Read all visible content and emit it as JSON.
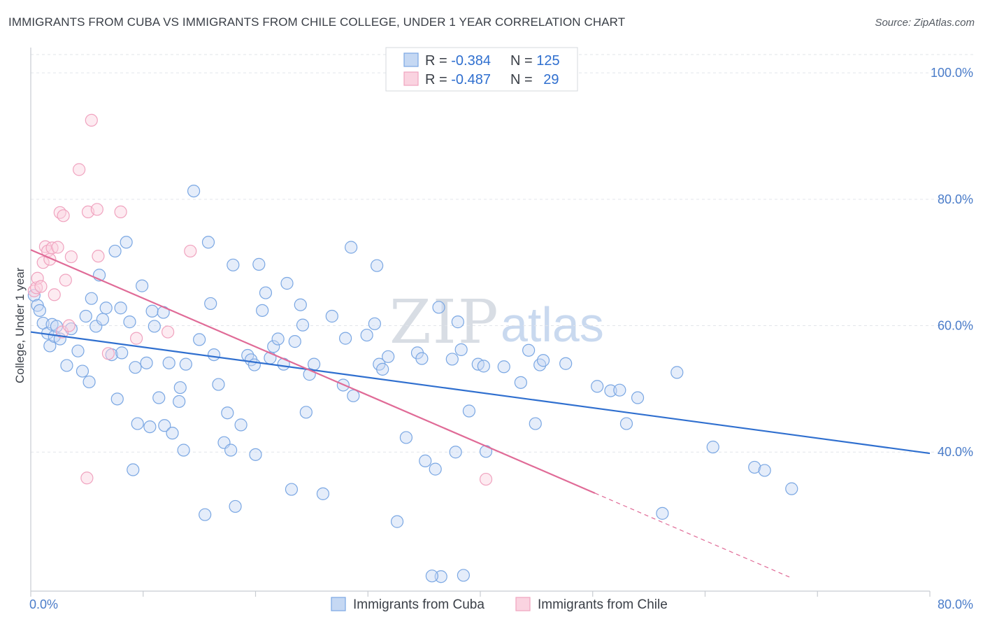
{
  "header": {
    "title": "IMMIGRANTS FROM CUBA VS IMMIGRANTS FROM CHILE COLLEGE, UNDER 1 YEAR CORRELATION CHART",
    "source": "Source: ZipAtlas.com"
  },
  "watermark": {
    "zip": "ZIP",
    "atlas": "atlas"
  },
  "legend": {
    "cuba": {
      "r_label": "R = ",
      "r_value": "-0.384",
      "n_label": "N = ",
      "n_value": "125"
    },
    "chile": {
      "r_label": "R = ",
      "r_value": "-0.487",
      "n_label": "N = ",
      "n_value": "29"
    }
  },
  "chart_data": {
    "type": "scatter",
    "title": "IMMIGRANTS FROM CUBA VS IMMIGRANTS FROM CHILE COLLEGE, UNDER 1 YEAR CORRELATION CHART",
    "xlabel": "",
    "ylabel": "College, Under 1 year",
    "xlim": [
      0,
      80
    ],
    "ylim": [
      18,
      104
    ],
    "x_tick_labels": [
      "0.0%",
      "80.0%"
    ],
    "y_ticks": [
      40,
      60,
      80,
      100
    ],
    "y_tick_labels": [
      "40.0%",
      "60.0%",
      "80.0%",
      "100.0%"
    ],
    "grid": true,
    "legend_position": "top-center",
    "colors": {
      "cuba": "#7aa7e3",
      "cuba_line": "#2f6fcf",
      "chile": "#f0a3bf",
      "chile_line": "#e06b97",
      "tick": "#4a7cc9"
    },
    "series": [
      {
        "name": "Immigrants from Cuba",
        "r": -0.384,
        "n": 125,
        "trend": {
          "x": [
            0,
            80
          ],
          "y": [
            59.0,
            39.8
          ]
        },
        "points": [
          [
            0.3,
            64.8
          ],
          [
            0.6,
            63.2
          ],
          [
            0.8,
            62.4
          ],
          [
            1.1,
            60.4
          ],
          [
            1.5,
            58.8
          ],
          [
            1.7,
            56.8
          ],
          [
            1.9,
            60.2
          ],
          [
            2.1,
            58.3
          ],
          [
            2.3,
            59.9
          ],
          [
            2.6,
            57.9
          ],
          [
            3.2,
            53.7
          ],
          [
            3.6,
            59.5
          ],
          [
            4.2,
            56.0
          ],
          [
            4.6,
            52.8
          ],
          [
            4.9,
            61.5
          ],
          [
            5.2,
            51.1
          ],
          [
            5.4,
            64.3
          ],
          [
            5.8,
            59.9
          ],
          [
            6.1,
            68.0
          ],
          [
            6.4,
            61.0
          ],
          [
            6.7,
            62.8
          ],
          [
            7.2,
            55.4
          ],
          [
            7.5,
            71.8
          ],
          [
            7.7,
            48.4
          ],
          [
            8.0,
            62.8
          ],
          [
            8.1,
            55.7
          ],
          [
            8.5,
            73.2
          ],
          [
            8.8,
            60.6
          ],
          [
            9.1,
            37.2
          ],
          [
            9.3,
            53.4
          ],
          [
            9.5,
            44.5
          ],
          [
            9.9,
            66.3
          ],
          [
            10.3,
            54.1
          ],
          [
            10.6,
            44.0
          ],
          [
            10.8,
            62.3
          ],
          [
            11.0,
            59.9
          ],
          [
            11.4,
            48.6
          ],
          [
            11.8,
            62.1
          ],
          [
            11.9,
            44.2
          ],
          [
            12.3,
            54.1
          ],
          [
            12.6,
            43.0
          ],
          [
            13.2,
            48.0
          ],
          [
            13.3,
            50.2
          ],
          [
            13.6,
            40.3
          ],
          [
            13.8,
            53.9
          ],
          [
            14.5,
            81.3
          ],
          [
            15.0,
            57.8
          ],
          [
            15.5,
            30.1
          ],
          [
            15.8,
            73.2
          ],
          [
            16.0,
            63.5
          ],
          [
            16.3,
            55.4
          ],
          [
            16.7,
            50.7
          ],
          [
            17.2,
            41.5
          ],
          [
            17.5,
            46.2
          ],
          [
            17.8,
            40.3
          ],
          [
            18.0,
            69.6
          ],
          [
            18.7,
            44.3
          ],
          [
            19.3,
            55.3
          ],
          [
            19.6,
            54.6
          ],
          [
            19.9,
            53.8
          ],
          [
            18.2,
            31.4
          ],
          [
            20.0,
            39.6
          ],
          [
            20.3,
            69.7
          ],
          [
            20.6,
            62.4
          ],
          [
            20.9,
            65.2
          ],
          [
            21.3,
            54.9
          ],
          [
            21.6,
            56.7
          ],
          [
            22.0,
            57.9
          ],
          [
            22.5,
            53.9
          ],
          [
            22.8,
            66.7
          ],
          [
            23.2,
            34.1
          ],
          [
            23.5,
            57.5
          ],
          [
            24.0,
            63.3
          ],
          [
            24.2,
            60.1
          ],
          [
            24.5,
            46.3
          ],
          [
            24.8,
            52.3
          ],
          [
            25.2,
            53.9
          ],
          [
            26.0,
            33.4
          ],
          [
            26.8,
            61.5
          ],
          [
            27.8,
            50.6
          ],
          [
            28.0,
            58.0
          ],
          [
            28.7,
            48.9
          ],
          [
            28.5,
            72.4
          ],
          [
            29.9,
            58.5
          ],
          [
            30.6,
            60.3
          ],
          [
            30.8,
            69.5
          ],
          [
            31.0,
            53.9
          ],
          [
            31.3,
            53.1
          ],
          [
            31.8,
            55.1
          ],
          [
            32.6,
            29.0
          ],
          [
            33.4,
            42.3
          ],
          [
            34.4,
            55.7
          ],
          [
            34.8,
            54.8
          ],
          [
            35.1,
            38.6
          ],
          [
            36.0,
            37.3
          ],
          [
            36.3,
            62.9
          ],
          [
            37.5,
            54.7
          ],
          [
            37.8,
            40.0
          ],
          [
            38.0,
            60.6
          ],
          [
            38.3,
            56.2
          ],
          [
            39.0,
            46.5
          ],
          [
            39.8,
            53.9
          ],
          [
            40.3,
            53.6
          ],
          [
            40.5,
            40.1
          ],
          [
            42.1,
            53.5
          ],
          [
            43.6,
            51.0
          ],
          [
            44.3,
            56.1
          ],
          [
            44.9,
            44.5
          ],
          [
            45.3,
            53.8
          ],
          [
            45.6,
            54.5
          ],
          [
            47.6,
            54.0
          ],
          [
            50.4,
            50.4
          ],
          [
            51.6,
            49.7
          ],
          [
            52.4,
            49.8
          ],
          [
            53.0,
            44.5
          ],
          [
            54.0,
            48.6
          ],
          [
            56.2,
            30.3
          ],
          [
            57.5,
            52.6
          ],
          [
            60.7,
            40.8
          ],
          [
            64.4,
            37.6
          ],
          [
            65.3,
            37.1
          ],
          [
            67.7,
            34.2
          ],
          [
            36.5,
            20.3
          ],
          [
            38.5,
            20.5
          ],
          [
            35.7,
            20.4
          ]
        ]
      },
      {
        "name": "Immigrants from Chile",
        "r": -0.487,
        "n": 29,
        "trend": {
          "x": [
            0,
            50.2
          ],
          "y": [
            72.0,
            33.5
          ]
        },
        "points": [
          [
            0.3,
            65.5
          ],
          [
            0.5,
            66.0
          ],
          [
            0.6,
            67.5
          ],
          [
            0.9,
            66.2
          ],
          [
            1.1,
            70.0
          ],
          [
            1.3,
            72.5
          ],
          [
            1.5,
            71.8
          ],
          [
            1.7,
            70.5
          ],
          [
            1.9,
            72.3
          ],
          [
            2.1,
            64.9
          ],
          [
            2.4,
            72.4
          ],
          [
            2.6,
            77.9
          ],
          [
            2.8,
            59.0
          ],
          [
            2.9,
            77.4
          ],
          [
            3.1,
            67.2
          ],
          [
            3.4,
            60.0
          ],
          [
            3.6,
            70.9
          ],
          [
            4.3,
            84.7
          ],
          [
            5.0,
            35.9
          ],
          [
            5.1,
            78.0
          ],
          [
            5.4,
            92.5
          ],
          [
            5.9,
            78.4
          ],
          [
            6.0,
            71.0
          ],
          [
            6.9,
            55.6
          ],
          [
            8.0,
            78.0
          ],
          [
            9.4,
            58.0
          ],
          [
            12.2,
            59.0
          ],
          [
            14.2,
            71.8
          ],
          [
            40.5,
            35.7
          ]
        ]
      }
    ]
  },
  "bottom_legend": {
    "cuba": "Immigrants from Cuba",
    "chile": "Immigrants from Chile"
  }
}
